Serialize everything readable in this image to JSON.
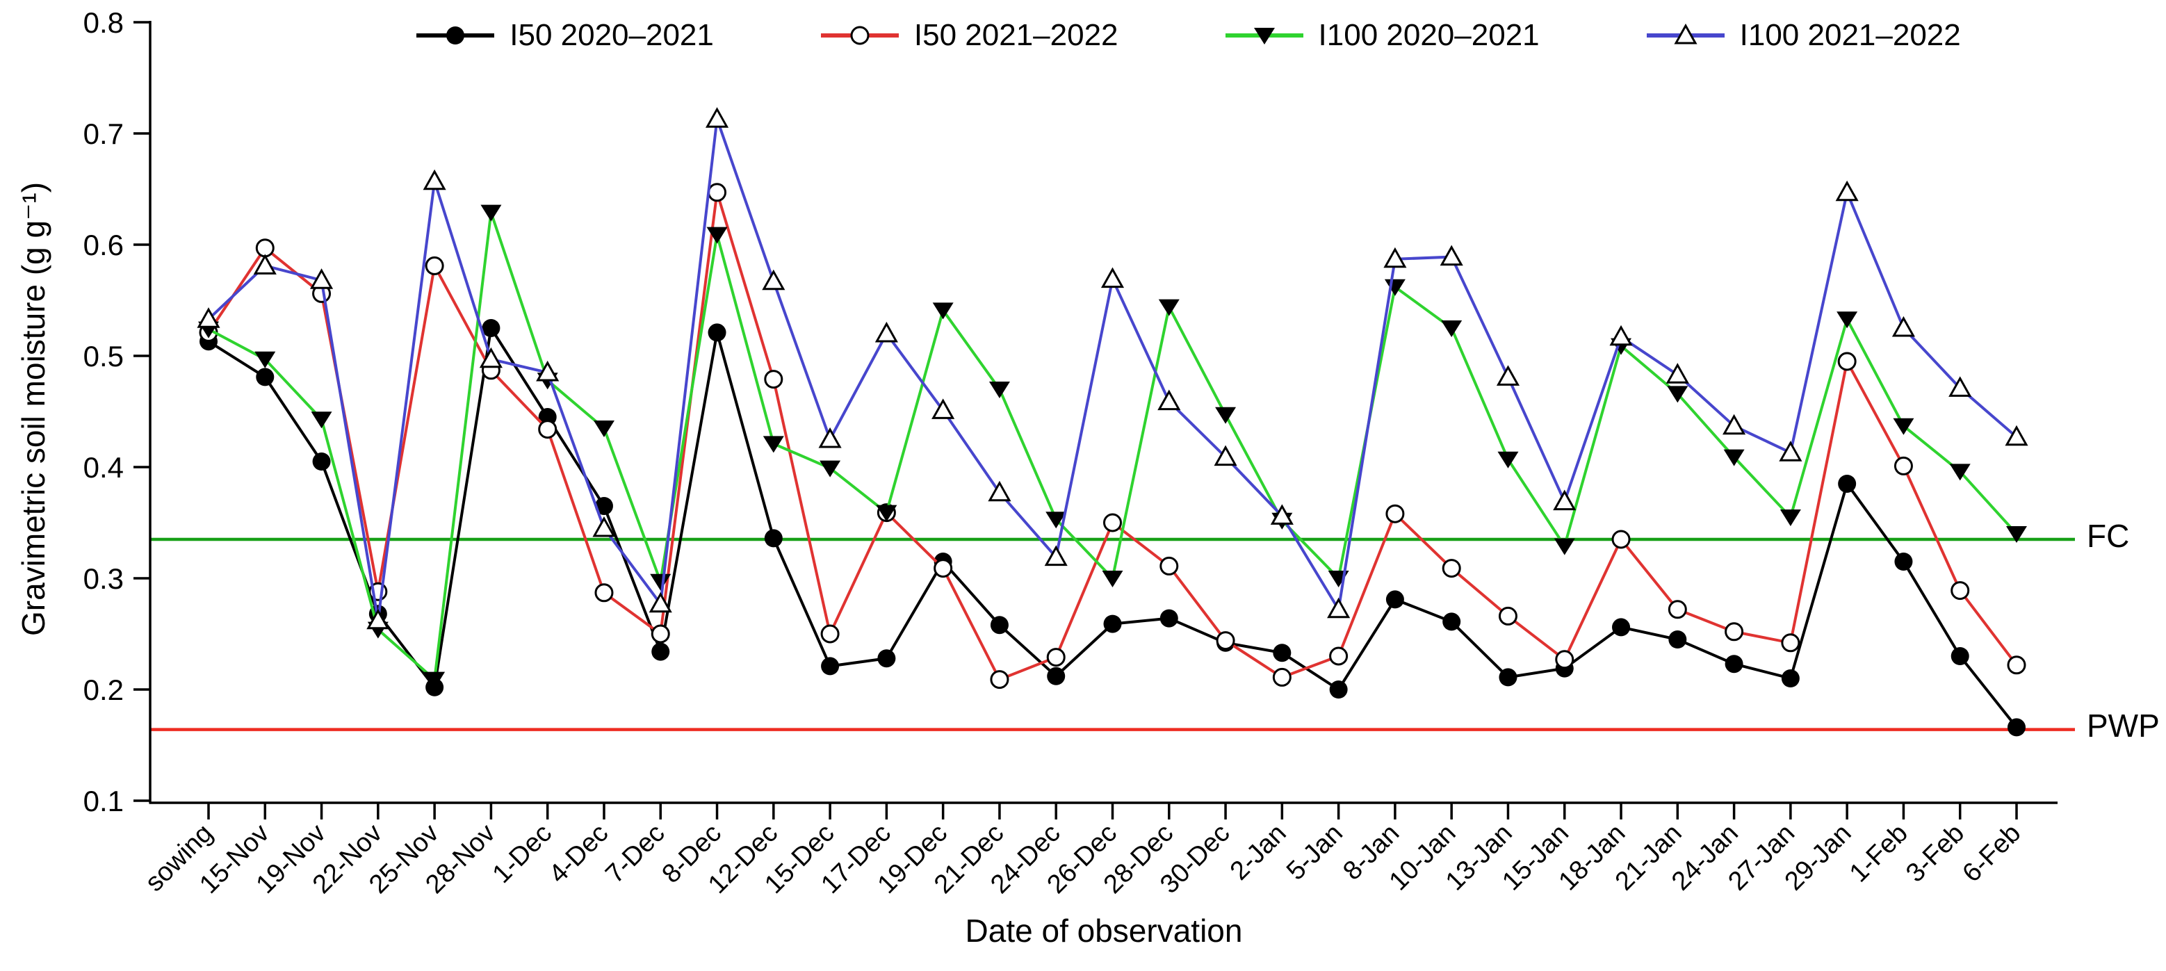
{
  "chart_data": {
    "type": "line",
    "title": "",
    "xlabel": "Date of observation",
    "ylabel": "Gravimetric soil moisture (g g⁻¹)",
    "ylim": [
      0.1,
      0.8
    ],
    "yticks": [
      0.1,
      0.2,
      0.3,
      0.4,
      0.5,
      0.6,
      0.7,
      0.8
    ],
    "grid": false,
    "legend_position": "top",
    "background": "#ffffff",
    "categories": [
      "sowing",
      "15-Nov",
      "19-Nov",
      "22-Nov",
      "25-Nov",
      "28-Nov",
      "1-Dec",
      "4-Dec",
      "7-Dec",
      "8-Dec",
      "12-Dec",
      "15-Dec",
      "17-Dec",
      "19-Dec",
      "21-Dec",
      "24-Dec",
      "26-Dec",
      "28-Dec",
      "30-Dec",
      "2-Jan",
      "5-Jan",
      "8-Jan",
      "10-Jan",
      "13-Jan",
      "15-Jan",
      "18-Jan",
      "21-Jan",
      "24-Jan",
      "27-Jan",
      "29-Jan",
      "1-Feb",
      "3-Feb",
      "6-Feb"
    ],
    "series": [
      {
        "name": "I50 2020–2021",
        "color": "#000000",
        "marker": "circle-filled",
        "values": [
          0.513,
          0.481,
          0.405,
          0.268,
          0.202,
          0.525,
          0.445,
          0.365,
          0.234,
          0.521,
          0.336,
          0.221,
          0.228,
          0.315,
          0.258,
          0.212,
          0.259,
          0.264,
          0.242,
          0.233,
          0.2,
          0.281,
          0.261,
          0.211,
          0.219,
          0.256,
          0.245,
          0.223,
          0.21,
          0.385,
          0.315,
          0.23,
          0.166
        ]
      },
      {
        "name": "I50 2021–2022",
        "color": "#e03331",
        "marker": "circle-open",
        "values": [
          0.521,
          0.597,
          0.556,
          0.288,
          0.581,
          0.487,
          0.434,
          0.287,
          0.25,
          0.647,
          0.479,
          0.25,
          0.359,
          0.309,
          0.209,
          0.229,
          0.35,
          0.311,
          0.244,
          0.211,
          0.23,
          0.358,
          0.309,
          0.266,
          0.227,
          0.335,
          0.272,
          0.252,
          0.242,
          0.495,
          0.401,
          0.289,
          0.222
        ]
      },
      {
        "name": "I100 2020–2021",
        "color": "#2fd32f",
        "marker": "triangle-down-filled",
        "values": [
          0.524,
          0.497,
          0.443,
          0.254,
          0.209,
          0.629,
          0.478,
          0.435,
          0.297,
          0.609,
          0.421,
          0.399,
          0.359,
          0.541,
          0.47,
          0.353,
          0.3,
          0.544,
          0.447,
          0.352,
          0.3,
          0.562,
          0.525,
          0.407,
          0.329,
          0.509,
          0.466,
          0.409,
          0.355,
          0.533,
          0.437,
          0.396,
          0.34
        ]
      },
      {
        "name": "I100 2021–2022",
        "color": "#4746cd",
        "marker": "triangle-up-open",
        "values": [
          0.533,
          0.581,
          0.568,
          0.262,
          0.657,
          0.497,
          0.485,
          0.345,
          0.277,
          0.713,
          0.567,
          0.425,
          0.52,
          0.451,
          0.377,
          0.319,
          0.569,
          0.459,
          0.409,
          0.356,
          0.272,
          0.587,
          0.589,
          0.481,
          0.369,
          0.517,
          0.483,
          0.437,
          0.413,
          0.647,
          0.525,
          0.471,
          0.427
        ]
      }
    ],
    "ref_lines": [
      {
        "label": "FC",
        "value": 0.335,
        "color": "#18a018"
      },
      {
        "label": "PWP",
        "value": 0.164,
        "color": "#ee2c22"
      }
    ],
    "axis_color": "#000000"
  }
}
